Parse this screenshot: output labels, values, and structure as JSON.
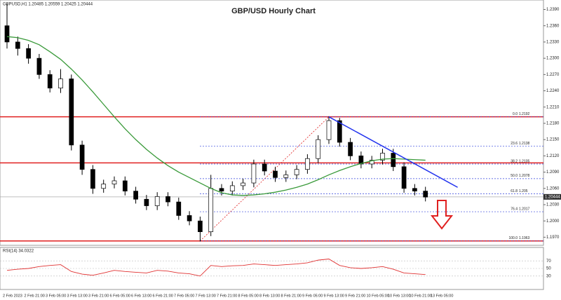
{
  "chart_data": {
    "type": "candlestick",
    "title": "GBP/USD Hourly Chart",
    "header": "GBPUSD,H1  1.20485 1.20559 1.20425 1.20444",
    "ylim": [
      1.1955,
      1.2401
    ],
    "yticks": [
      {
        "value": 1.197,
        "label": "1.1970"
      },
      {
        "value": 1.2,
        "label": "1.2000"
      },
      {
        "value": 1.203,
        "label": "1.2030"
      },
      {
        "value": 1.206,
        "label": "1.2060"
      },
      {
        "value": 1.209,
        "label": "1.2090"
      },
      {
        "value": 1.212,
        "label": "1.2120"
      },
      {
        "value": 1.215,
        "label": "1.2150"
      },
      {
        "value": 1.218,
        "label": "1.2180"
      },
      {
        "value": 1.221,
        "label": "1.2210"
      },
      {
        "value": 1.224,
        "label": "1.2240"
      },
      {
        "value": 1.227,
        "label": "1.2270"
      },
      {
        "value": 1.23,
        "label": "1.2300"
      },
      {
        "value": 1.233,
        "label": "1.2330"
      },
      {
        "value": 1.236,
        "label": "1.2360"
      },
      {
        "value": 1.239,
        "label": "1.2390"
      }
    ],
    "xlabels": [
      "2 Feb 2023",
      "2 Feb 21:00",
      "3 Feb 05:00",
      "3 Feb 13:00",
      "3 Feb 21:00",
      "6 Feb 05:00",
      "6 Feb 13:00",
      "6 Feb 21:00",
      "7 Feb 05:00",
      "7 Feb 13:00",
      "7 Feb 21:00",
      "8 Feb 05:00",
      "8 Feb 13:00",
      "8 Feb 21:00",
      "9 Feb 05:00",
      "9 Feb 13:00",
      "9 Feb 21:00",
      "10 Feb 05:00",
      "10 Feb 13:00",
      "10 Feb 21:00",
      "13 Feb 05:00"
    ],
    "up_color": "#ffffff",
    "down_color": "#000000",
    "candles": {
      "open": [
        1.236,
        1.233,
        1.2318,
        1.23,
        1.227,
        1.2245,
        1.2262,
        1.214,
        1.2095,
        1.206,
        1.2068,
        1.2074,
        1.2055,
        1.204,
        1.2028,
        1.2045,
        1.2035,
        1.201,
        1.2,
        1.198,
        1.206,
        1.2055,
        1.2065,
        1.207,
        1.2105,
        1.2092,
        1.208,
        1.2085,
        1.2095,
        1.2115,
        1.215,
        1.2185,
        1.2145,
        1.212,
        1.2105,
        1.2112,
        1.2125,
        1.21,
        1.206,
        1.2055
      ],
      "high": [
        1.24,
        1.234,
        1.2326,
        1.2308,
        1.2278,
        1.228,
        1.227,
        1.2148,
        1.2103,
        1.2076,
        1.2082,
        1.2082,
        1.2063,
        1.2048,
        1.2053,
        1.2053,
        1.2043,
        1.2018,
        1.2008,
        1.2085,
        1.2068,
        1.2073,
        1.2078,
        1.2113,
        1.2113,
        1.21,
        1.2093,
        1.2103,
        1.2123,
        1.2158,
        1.2193,
        1.219,
        1.2153,
        1.2128,
        1.212,
        1.2133,
        1.2133,
        1.2108,
        1.2068,
        1.2063
      ],
      "low": [
        1.2318,
        1.2305,
        1.229,
        1.2262,
        1.2237,
        1.2236,
        1.213,
        1.2085,
        1.205,
        1.2052,
        1.206,
        1.2047,
        1.2032,
        1.202,
        1.202,
        1.2027,
        1.2002,
        1.1992,
        1.1962,
        1.1972,
        1.2047,
        1.2047,
        1.2057,
        1.2062,
        1.2084,
        1.2072,
        1.2072,
        1.2077,
        1.2087,
        1.2107,
        1.2142,
        1.2137,
        1.2112,
        1.2097,
        1.2097,
        1.2104,
        1.2092,
        1.2052,
        1.2047,
        1.2036
      ],
      "close": [
        1.233,
        1.2318,
        1.23,
        1.227,
        1.2245,
        1.2262,
        1.214,
        1.2095,
        1.206,
        1.2068,
        1.2074,
        1.2055,
        1.204,
        1.2028,
        1.2045,
        1.2035,
        1.201,
        1.2,
        1.198,
        1.206,
        1.2055,
        1.2065,
        1.207,
        1.2105,
        1.2092,
        1.208,
        1.2085,
        1.2095,
        1.2115,
        1.215,
        1.2185,
        1.2145,
        1.212,
        1.2105,
        1.2112,
        1.2125,
        1.21,
        1.206,
        1.2055,
        1.2044
      ]
    },
    "moving_average": {
      "color": "#3a9a3a",
      "values": [
        1.234,
        1.2338,
        1.2333,
        1.2325,
        1.2312,
        1.2298,
        1.228,
        1.226,
        1.2238,
        1.2215,
        1.2192,
        1.217,
        1.215,
        1.2132,
        1.2116,
        1.2102,
        1.209,
        1.208,
        1.207,
        1.206,
        1.2052,
        1.2048,
        1.2047,
        1.2048,
        1.205,
        1.2053,
        1.2057,
        1.2062,
        1.2068,
        1.2076,
        1.2085,
        1.2093,
        1.21,
        1.2106,
        1.2111,
        1.2114,
        1.2115,
        1.2114,
        1.2113,
        1.2112
      ]
    },
    "levels": {
      "color": "#e02020",
      "values": [
        1.2192,
        1.2107,
        1.1963
      ]
    },
    "fib": {
      "color": "#3344dd",
      "labels": [
        "0.0",
        "23.6",
        "38.2",
        "50.0",
        "61.8",
        "76.4",
        "100.0"
      ],
      "values": [
        1.2192,
        1.2138,
        1.2105,
        1.2078,
        1.205,
        1.2017,
        1.1963
      ]
    },
    "trendline": {
      "color": "#2233ee",
      "x": [
        30,
        42
      ],
      "values": [
        1.2192,
        1.2062
      ]
    },
    "current_price": 1.20444,
    "rsi": {
      "label": "RSI(14) 34.0322",
      "color": "#e03030",
      "ylim": [
        0,
        100
      ],
      "yticks": [
        30,
        50,
        70
      ],
      "values": [
        45,
        48,
        50,
        55,
        58,
        60,
        42,
        35,
        32,
        38,
        45,
        42,
        40,
        38,
        45,
        43,
        38,
        36,
        30,
        58,
        55,
        57,
        58,
        62,
        60,
        58,
        60,
        62,
        65,
        72,
        75,
        58,
        52,
        50,
        52,
        55,
        48,
        38,
        36,
        34
      ]
    }
  }
}
